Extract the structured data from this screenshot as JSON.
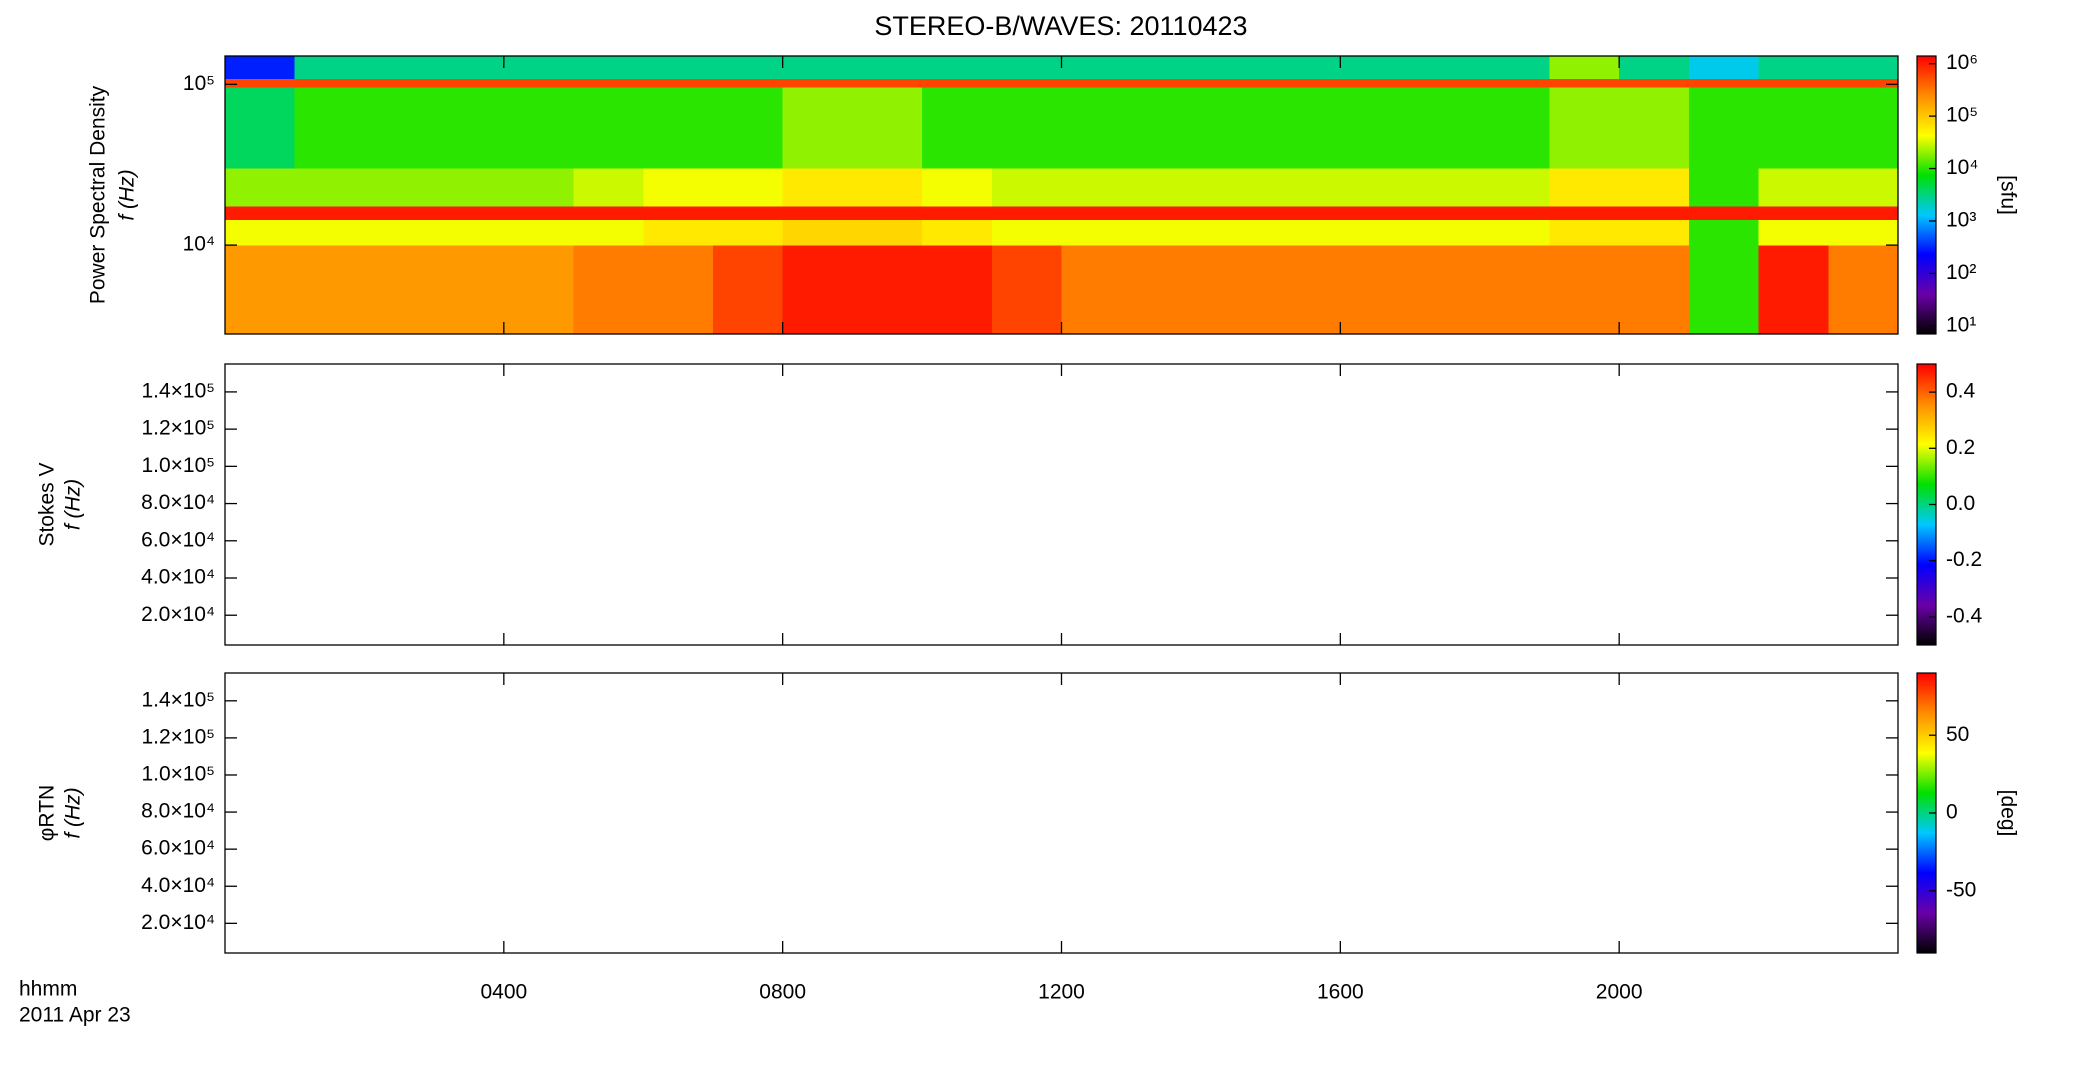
{
  "chart_data": [
    {
      "type": "heatmap",
      "title": "STEREO-B/WAVES: 20110423",
      "ylabel": "Power Spectral Density",
      "ylabel2": "f (Hz)",
      "ylog": true,
      "ylim": [
        2800,
        150000
      ],
      "yticks": [
        {
          "value": 10000,
          "label": "10⁴"
        },
        {
          "value": 100000,
          "label": "10⁵"
        }
      ],
      "xbins": [
        0,
        1,
        2,
        3,
        4,
        5,
        6,
        7,
        8,
        9,
        10,
        11,
        12,
        13,
        14,
        15,
        16,
        17,
        18,
        19,
        20,
        21,
        22,
        23,
        24
      ],
      "ybins": [
        2800,
        10000,
        14400,
        17400,
        30000,
        96000,
        108000,
        150000
      ],
      "z": [
        [
          200000,
          200000,
          200000,
          200000,
          200000,
          300000,
          300000,
          600000,
          1000000,
          1000000,
          1000000,
          600000,
          300000,
          300000,
          300000,
          300000,
          300000,
          300000,
          300000,
          300000,
          300000,
          10000,
          1000000,
          300000
        ],
        [
          40000,
          40000,
          40000,
          40000,
          40000,
          40000,
          60000,
          60000,
          80000,
          80000,
          60000,
          40000,
          40000,
          40000,
          40000,
          40000,
          40000,
          40000,
          40000,
          60000,
          60000,
          10000,
          40000,
          40000
        ],
        [
          1000000,
          1000000,
          1000000,
          1000000,
          1000000,
          1000000,
          1000000,
          1000000,
          1000000,
          1000000,
          1000000,
          1000000,
          1000000,
          1000000,
          1000000,
          1000000,
          1000000,
          1000000,
          1000000,
          1000000,
          1000000,
          1000000,
          1000000,
          1000000
        ],
        [
          20000,
          20000,
          20000,
          20000,
          20000,
          30000,
          40000,
          40000,
          60000,
          60000,
          40000,
          30000,
          30000,
          30000,
          30000,
          30000,
          30000,
          30000,
          30000,
          60000,
          60000,
          10000,
          30000,
          30000
        ],
        [
          4000,
          10000,
          10000,
          10000,
          10000,
          10000,
          10000,
          10000,
          20000,
          20000,
          10000,
          10000,
          10000,
          10000,
          10000,
          10000,
          10000,
          10000,
          10000,
          20000,
          20000,
          10000,
          10000,
          10000
        ],
        [
          600000,
          600000,
          600000,
          600000,
          600000,
          600000,
          600000,
          600000,
          600000,
          600000,
          600000,
          600000,
          600000,
          600000,
          600000,
          600000,
          600000,
          600000,
          600000,
          600000,
          600000,
          600000,
          600000,
          600000
        ],
        [
          300,
          3000,
          3000,
          3000,
          3000,
          3000,
          3000,
          3000,
          3000,
          3000,
          3000,
          3000,
          3000,
          3000,
          3000,
          3000,
          3000,
          3000,
          3000,
          20000,
          3000,
          1500,
          3000,
          3000
        ]
      ],
      "clog": true,
      "clim": [
        7,
        1400000
      ],
      "cticks": [
        {
          "value": 10,
          "label": "10¹"
        },
        {
          "value": 100,
          "label": "10²"
        },
        {
          "value": 1000,
          "label": "10³"
        },
        {
          "value": 10000,
          "label": "10⁴"
        },
        {
          "value": 100000,
          "label": "10⁵"
        },
        {
          "value": 1000000,
          "label": "10⁶"
        }
      ],
      "clabel": "[sfu]",
      "colormap": [
        "#000000",
        "#6a00a8",
        "#0000ff",
        "#00c8ff",
        "#00e000",
        "#ffff00",
        "#ff8c00",
        "#ff0000"
      ]
    },
    {
      "type": "heatmap",
      "ylabel": "Stokes V",
      "ylabel2": "f (Hz)",
      "ylim": [
        4000,
        155000
      ],
      "yticks": [
        {
          "value": 20000,
          "label": "2.0×10⁴"
        },
        {
          "value": 40000,
          "label": "4.0×10⁴"
        },
        {
          "value": 60000,
          "label": "6.0×10⁴"
        },
        {
          "value": 80000,
          "label": "8.0×10⁴"
        },
        {
          "value": 100000,
          "label": "1.0×10⁵"
        },
        {
          "value": 120000,
          "label": "1.2×10⁵"
        },
        {
          "value": 140000,
          "label": "1.4×10⁵"
        }
      ],
      "clim": [
        -0.5,
        0.5
      ],
      "cticks": [
        -0.4,
        -0.2,
        {
          "value": 0,
          "label": "0.0"
        },
        0.2,
        0.4
      ],
      "colormap": [
        "#000000",
        "#6a00a8",
        "#0000ff",
        "#00c8ff",
        "#00e000",
        "#ffff00",
        "#ff8c00",
        "#ff0000"
      ]
    },
    {
      "type": "heatmap",
      "ylabel": "φRTN",
      "ylabel2": "f (Hz)",
      "ylim": [
        4000,
        155000
      ],
      "yticks": [
        {
          "value": 20000,
          "label": "2.0×10⁴"
        },
        {
          "value": 40000,
          "label": "4.0×10⁴"
        },
        {
          "value": 60000,
          "label": "6.0×10⁴"
        },
        {
          "value": 80000,
          "label": "8.0×10⁴"
        },
        {
          "value": 100000,
          "label": "1.0×10⁵"
        },
        {
          "value": 120000,
          "label": "1.2×10⁵"
        },
        {
          "value": 140000,
          "label": "1.4×10⁵"
        }
      ],
      "clim": [
        -90,
        90
      ],
      "cticks": [
        -50,
        0,
        50
      ],
      "clabel": "[deg]",
      "colormap": [
        "#000000",
        "#6a00a8",
        "#0000ff",
        "#00c8ff",
        "#00e000",
        "#ffff00",
        "#ff8c00",
        "#ff0000"
      ],
      "xlim": [
        0,
        24
      ],
      "xticks": [
        {
          "value": 4,
          "label": "0400"
        },
        {
          "value": 8,
          "label": "0800"
        },
        {
          "value": 12,
          "label": "1200"
        },
        {
          "value": 16,
          "label": "1600"
        },
        {
          "value": 20,
          "label": "2000"
        }
      ],
      "xlabel": "hhmm",
      "date": "2011 Apr 23"
    }
  ]
}
